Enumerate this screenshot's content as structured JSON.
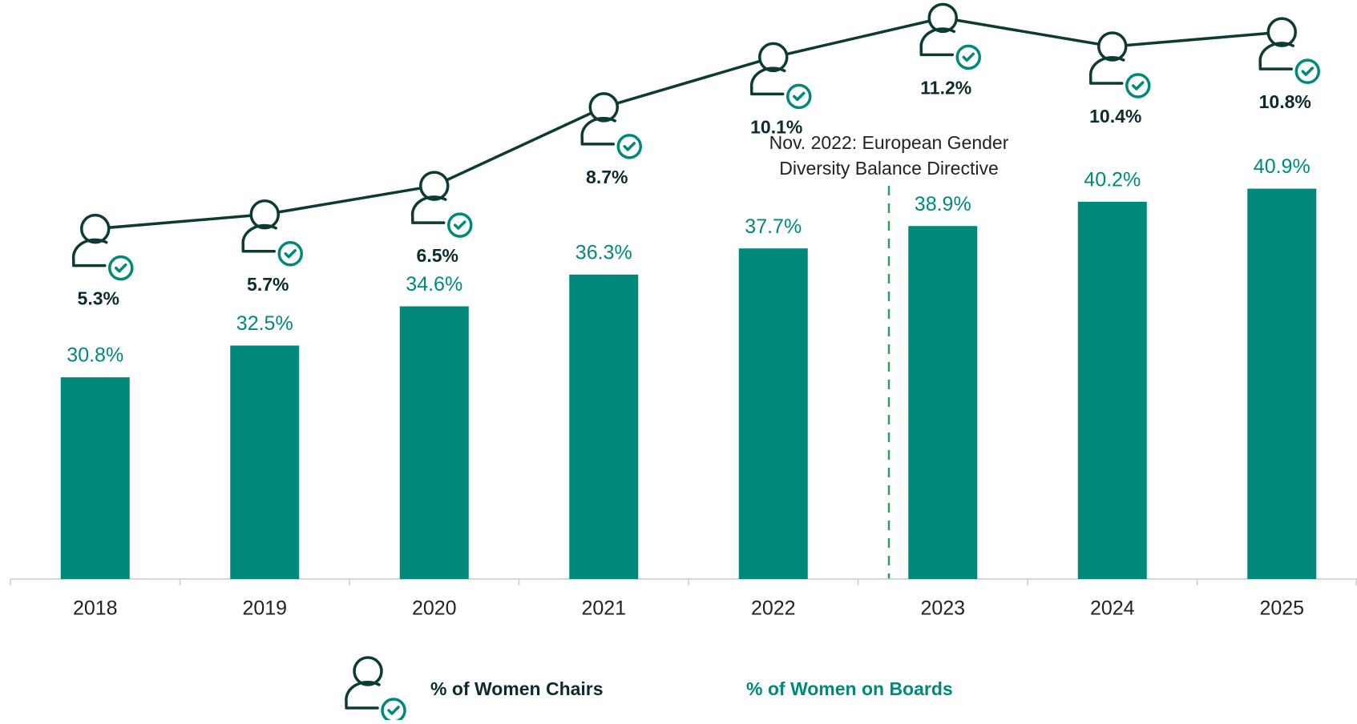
{
  "chart_data": {
    "type": "bar_line",
    "categories": [
      "2018",
      "2019",
      "2020",
      "2021",
      "2022",
      "2023",
      "2024",
      "2025"
    ],
    "series": [
      {
        "name": "% of Women on Boards",
        "type": "bar",
        "color": "#00897b",
        "values": [
          30.8,
          32.5,
          34.6,
          36.3,
          37.7,
          38.9,
          40.2,
          40.9
        ],
        "value_labels": [
          "30.8%",
          "32.5%",
          "34.6%",
          "36.3%",
          "37.7%",
          "38.9%",
          "40.2%",
          "40.9%"
        ]
      },
      {
        "name": "% of Women Chairs",
        "type": "line",
        "axis": "y2",
        "color": "#0d3b33",
        "values": [
          5.3,
          5.7,
          6.5,
          8.7,
          10.1,
          11.2,
          10.4,
          10.8
        ],
        "value_labels": [
          "5.3%",
          "5.7%",
          "6.5%",
          "8.7%",
          "10.1%",
          "11.2%",
          "10.4%",
          "10.8%"
        ]
      }
    ],
    "ylim": [
      20,
      51
    ],
    "y2lim": [
      -4.5,
      11.7
    ],
    "annotation": [
      "Nov. 2022: European Gender",
      "Diversity Balance Directive"
    ]
  }
}
